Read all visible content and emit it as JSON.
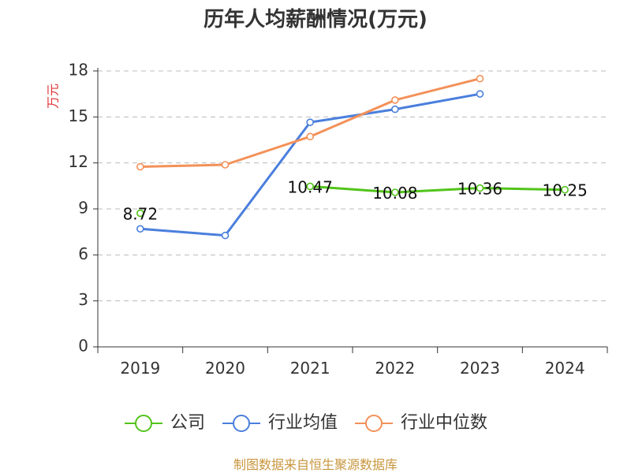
{
  "chart_data": {
    "type": "line",
    "title": "历年人均薪酬情况(万元)",
    "ylabel": "万元",
    "categories": [
      "2019",
      "2020",
      "2021",
      "2022",
      "2023",
      "2024"
    ],
    "ylim": [
      0,
      18
    ],
    "yticks": [
      0,
      3,
      6,
      9,
      12,
      15,
      18
    ],
    "grid": true,
    "legend_position": "bottom",
    "series": [
      {
        "name": "公司",
        "color": "#52c41a",
        "values": [
          8.72,
          null,
          10.47,
          10.08,
          10.36,
          10.25
        ],
        "show_labels": true
      },
      {
        "name": "行业均值",
        "color": "#4a7fdc",
        "values": [
          7.7,
          7.27,
          14.65,
          15.5,
          16.5,
          null
        ],
        "show_labels": false
      },
      {
        "name": "行业中位数",
        "color": "#f39159",
        "values": [
          11.75,
          11.88,
          13.72,
          16.1,
          17.5,
          null
        ],
        "show_labels": false
      }
    ]
  },
  "source_text": "制图数据来自恒生聚源数据库",
  "colors": {
    "axis": "#333333",
    "grid": "#bbbbbb",
    "ylabel": "#e0353a",
    "source": "#c8963e"
  }
}
